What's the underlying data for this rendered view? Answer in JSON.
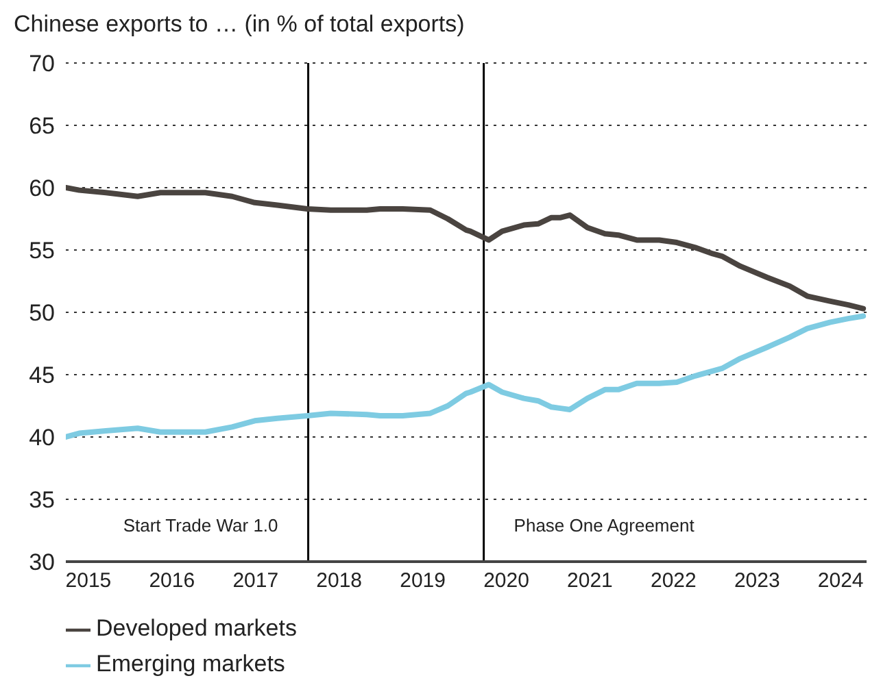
{
  "chart_data": {
    "type": "line",
    "title": "Chinese exports to … (in % of total exports)",
    "x": [
      2014.73,
      2014.89,
      2015.21,
      2015.59,
      2015.86,
      2016.4,
      2016.72,
      2016.99,
      2017.26,
      2017.62,
      2017.9,
      2018.33,
      2018.49,
      2018.76,
      2019.09,
      2019.3,
      2019.52,
      2019.57,
      2019.79,
      2019.95,
      2020.21,
      2020.38,
      2020.54,
      2020.65,
      2020.76,
      2020.97,
      2021.18,
      2021.34,
      2021.56,
      2021.83,
      2022.04,
      2022.26,
      2022.47,
      2022.58,
      2022.8,
      2023.12,
      2023.39,
      2023.6,
      2023.87,
      2024.09,
      2024.27
    ],
    "series": [
      {
        "name": "Developed markets",
        "color": "#4a4440",
        "values": [
          60.0,
          59.8,
          59.6,
          59.3,
          59.6,
          59.6,
          59.3,
          58.8,
          58.6,
          58.3,
          58.2,
          58.2,
          58.3,
          58.3,
          58.2,
          57.5,
          56.6,
          56.5,
          55.8,
          56.5,
          57.0,
          57.1,
          57.6,
          57.6,
          57.8,
          56.8,
          56.3,
          56.2,
          55.8,
          55.8,
          55.6,
          55.2,
          54.7,
          54.5,
          53.7,
          52.8,
          52.1,
          51.3,
          50.9,
          50.6,
          50.3
        ]
      },
      {
        "name": "Emerging markets",
        "color": "#7ecbe2",
        "values": [
          40.0,
          40.3,
          40.5,
          40.7,
          40.4,
          40.4,
          40.8,
          41.3,
          41.5,
          41.7,
          41.9,
          41.8,
          41.7,
          41.7,
          41.9,
          42.5,
          43.5,
          43.6,
          44.2,
          43.6,
          43.1,
          42.9,
          42.4,
          42.3,
          42.2,
          43.1,
          43.8,
          43.8,
          44.3,
          44.3,
          44.4,
          44.9,
          45.3,
          45.5,
          46.3,
          47.2,
          48.0,
          48.7,
          49.2,
          49.5,
          49.7
        ]
      }
    ],
    "xlim": [
      2014.73,
      2024.31
    ],
    "xticks": [
      2015,
      2016,
      2017,
      2018,
      2019,
      2020,
      2021,
      2022,
      2023,
      2024
    ],
    "ylim": [
      30,
      70
    ],
    "yticks": [
      30,
      35,
      40,
      45,
      50,
      55,
      60,
      65,
      70
    ],
    "grid": "y",
    "legend": "bottom",
    "marker": "none",
    "line_style": "solid",
    "ref_lines": [
      {
        "axis": "x",
        "value": 2017.63,
        "label": "Start Trade War 1.0",
        "color": "#000000"
      },
      {
        "axis": "x",
        "value": 2019.73,
        "label": "Phase One Agreement",
        "color": "#000000"
      }
    ]
  }
}
